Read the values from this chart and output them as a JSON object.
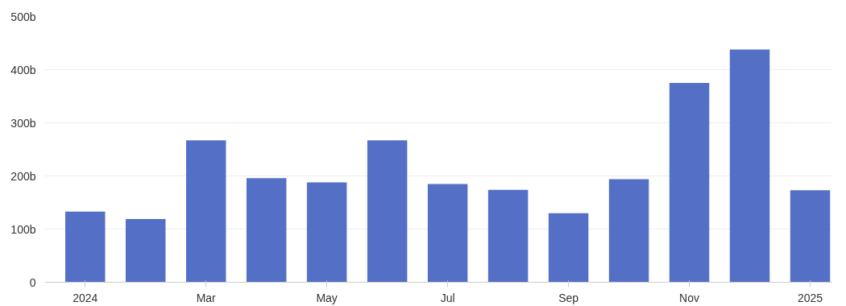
{
  "chart_data": {
    "type": "bar",
    "categories": [
      "2024",
      null,
      "Mar",
      null,
      "May",
      null,
      "Jul",
      null,
      "Sep",
      null,
      "Nov",
      null,
      "2025"
    ],
    "values": [
      133,
      119,
      267,
      196,
      188,
      267,
      185,
      174,
      130,
      194,
      375,
      438,
      173
    ],
    "color": "#5470c6",
    "ylim": [
      0,
      500
    ],
    "yticks": [
      0,
      {
        "value": 100,
        "label": "100b"
      },
      {
        "value": 200,
        "label": "200b"
      },
      {
        "value": 300,
        "label": "300b"
      },
      {
        "value": 400,
        "label": "400b"
      },
      {
        "value": 500,
        "label": "500b"
      }
    ],
    "grid": "y"
  }
}
